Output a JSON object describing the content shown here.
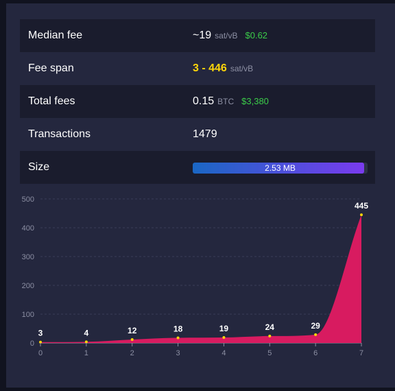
{
  "stats": {
    "median_fee": {
      "label": "Median fee",
      "value": "~19",
      "unit": "sat/vB",
      "fiat": "$0.62"
    },
    "fee_span": {
      "label": "Fee span",
      "value": "3 - 446",
      "unit": "sat/vB"
    },
    "total_fees": {
      "label": "Total fees",
      "value": "0.15",
      "unit": "BTC",
      "fiat": "$3,380"
    },
    "transactions": {
      "label": "Transactions",
      "value": "1479"
    },
    "size": {
      "label": "Size",
      "value": "2.53 MB",
      "fill_fraction": 0.98
    }
  },
  "colors": {
    "accent_green": "#3bcc49",
    "accent_yellow": "#ffd60a",
    "chart_fill": "#d81b60"
  },
  "chart_data": {
    "type": "area",
    "x": [
      0,
      1,
      2,
      3,
      4,
      5,
      6,
      7
    ],
    "values": [
      3,
      4,
      12,
      18,
      19,
      24,
      29,
      445
    ],
    "data_labels": [
      "3",
      "4",
      "12",
      "18",
      "19",
      "24",
      "29",
      "445"
    ],
    "x_tick_labels": [
      "0",
      "1",
      "2",
      "3",
      "4",
      "5",
      "6",
      "7"
    ],
    "y_tick_labels": [
      "0",
      "100",
      "200",
      "300",
      "400",
      "500"
    ],
    "ylim": [
      0,
      500
    ],
    "xlim": [
      0,
      7
    ],
    "grid": true
  }
}
